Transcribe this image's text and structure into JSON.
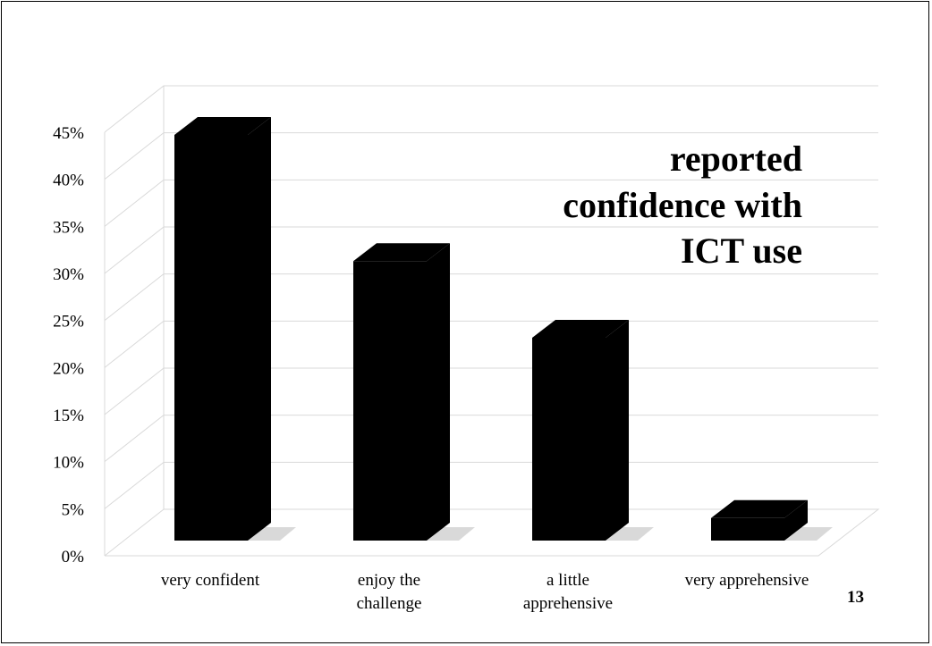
{
  "chart_data": {
    "type": "bar",
    "title_lines": [
      "reported",
      "confidence with",
      "ICT use"
    ],
    "categories": [
      [
        "very confident"
      ],
      [
        "enjoy the",
        "challenge"
      ],
      [
        "a little",
        "apprehensive"
      ],
      [
        "very apprehensive"
      ]
    ],
    "values": [
      45,
      31,
      22.5,
      2.5
    ],
    "y_ticks": [
      "0%",
      "5%",
      "10%",
      "15%",
      "20%",
      "25%",
      "30%",
      "35%",
      "40%",
      "45%"
    ],
    "ylim": [
      0,
      45
    ],
    "grid": true,
    "bar_color": "#000000",
    "gridline_color": "#d9d9d9"
  },
  "slide": {
    "page_number": "13"
  }
}
